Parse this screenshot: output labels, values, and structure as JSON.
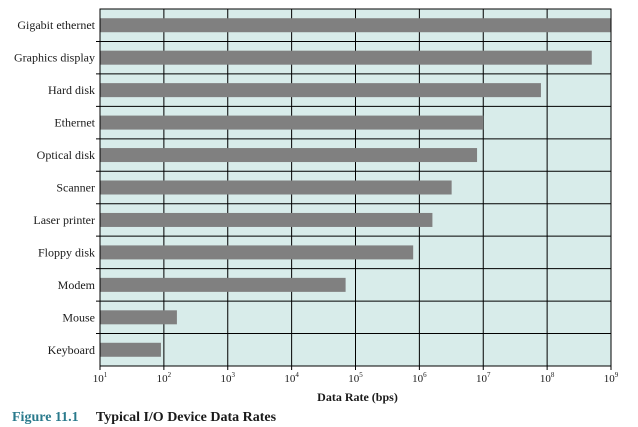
{
  "colors": {
    "plot_background": "#d8ecea",
    "bar": "#808080",
    "grid": "#000000",
    "caption_number": "#2a7a8c"
  },
  "caption": {
    "number": "Figure 11.1",
    "title": "Typical I/O Device Data Rates"
  },
  "chart_data": {
    "type": "bar",
    "orientation": "horizontal",
    "xscale": "log",
    "xlim": [
      10,
      1000000000
    ],
    "xlabel": "Data Rate (bps)",
    "ylabel": "",
    "title": "",
    "grid": true,
    "x_ticks": [
      {
        "base": "10",
        "exp": "1",
        "value": 10
      },
      {
        "base": "10",
        "exp": "2",
        "value": 100
      },
      {
        "base": "10",
        "exp": "3",
        "value": 1000
      },
      {
        "base": "10",
        "exp": "4",
        "value": 10000
      },
      {
        "base": "10",
        "exp": "5",
        "value": 100000
      },
      {
        "base": "10",
        "exp": "6",
        "value": 1000000
      },
      {
        "base": "10",
        "exp": "7",
        "value": 10000000
      },
      {
        "base": "10",
        "exp": "8",
        "value": 100000000
      },
      {
        "base": "10",
        "exp": "9",
        "value": 1000000000
      }
    ],
    "categories": [
      "Gigabit ethernet",
      "Graphics display",
      "Hard disk",
      "Ethernet",
      "Optical disk",
      "Scanner",
      "Laser printer",
      "Floppy disk",
      "Modem",
      "Mouse",
      "Keyboard"
    ],
    "values": [
      1000000000,
      500000000,
      80000000,
      10000000,
      8000000,
      3200000,
      1600000,
      800000,
      70000,
      160,
      90
    ]
  }
}
